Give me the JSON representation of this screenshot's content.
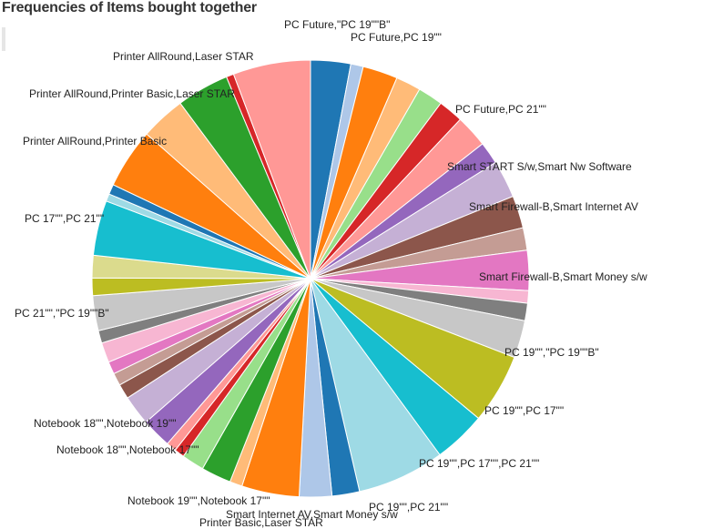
{
  "chart_data": {
    "type": "pie",
    "title": "Frequencies of Items bought together",
    "slices": [
      {
        "label": "PC Future,\"PC 19\"\"B\"",
        "value": 3.2,
        "color": "#1f77b4",
        "show_label": true
      },
      {
        "label": "PC Future,PC 19\"\"",
        "value": 1.0,
        "color": "#aec7e8",
        "show_label": true
      },
      {
        "label": "",
        "value": 2.8,
        "color": "#ff7f0e",
        "show_label": false
      },
      {
        "label": "",
        "value": 2.0,
        "color": "#ffbb78",
        "show_label": false
      },
      {
        "label": "",
        "value": 2.0,
        "color": "#98df8a",
        "show_label": false
      },
      {
        "label": "PC Future,PC 21\"\"",
        "value": 2.0,
        "color": "#d62728",
        "show_label": true
      },
      {
        "label": "",
        "value": 2.6,
        "color": "#ff9896",
        "show_label": false
      },
      {
        "label": "Smart START S/w,Smart Nw Software",
        "value": 1.8,
        "color": "#9467bd",
        "show_label": true
      },
      {
        "label": "",
        "value": 3.0,
        "color": "#c5b0d5",
        "show_label": false
      },
      {
        "label": "Smart Firewall-B,Smart Internet AV",
        "value": 2.6,
        "color": "#8c564b",
        "show_label": true
      },
      {
        "label": "",
        "value": 1.8,
        "color": "#c49c94",
        "show_label": false
      },
      {
        "label": "Smart Firewall-B,Smart Money s/w",
        "value": 3.2,
        "color": "#e377c2",
        "show_label": true
      },
      {
        "label": "",
        "value": 1.0,
        "color": "#f7b6d2",
        "show_label": false
      },
      {
        "label": "",
        "value": 1.4,
        "color": "#7f7f7f",
        "show_label": false
      },
      {
        "label": "PC 19\"\",\"PC 19\"\"B\"",
        "value": 3.0,
        "color": "#c7c7c7",
        "show_label": true
      },
      {
        "label": "PC 19\"\",PC 17\"\"",
        "value": 5.6,
        "color": "#bcbd22",
        "show_label": true
      },
      {
        "label": "PC 19\"\",PC 17\"\",PC 21\"\"",
        "value": 4.2,
        "color": "#17becf",
        "show_label": true
      },
      {
        "label": "",
        "value": 7.0,
        "color": "#9edae5",
        "show_label": false
      },
      {
        "label": "PC 19\"\",PC 21\"\"",
        "value": 2.2,
        "color": "#1f77b4",
        "show_label": true
      },
      {
        "label": "Smart Internet AV,Smart Money s/w",
        "value": 2.6,
        "color": "#aec7e8",
        "show_label": true
      },
      {
        "label": "Printer Basic,Laser STAR",
        "value": 4.6,
        "color": "#ff7f0e",
        "show_label": true
      },
      {
        "label": "",
        "value": 1.0,
        "color": "#ffbb78",
        "show_label": false
      },
      {
        "label": "Notebook 19\"\",Notebook 17\"\"",
        "value": 2.4,
        "color": "#2ca02c",
        "show_label": true
      },
      {
        "label": "",
        "value": 1.8,
        "color": "#98df8a",
        "show_label": false
      },
      {
        "label": "",
        "value": 0.8,
        "color": "#d62728",
        "show_label": false
      },
      {
        "label": "Notebook 18\"\",Notebook 17\"\"",
        "value": 0.8,
        "color": "#ff9896",
        "show_label": true
      },
      {
        "label": "Notebook 18\"\",Notebook 19\"\"",
        "value": 2.4,
        "color": "#9467bd",
        "show_label": true
      },
      {
        "label": "",
        "value": 2.4,
        "color": "#c5b0d5",
        "show_label": false
      },
      {
        "label": "",
        "value": 1.2,
        "color": "#8c564b",
        "show_label": false
      },
      {
        "label": "",
        "value": 1.0,
        "color": "#c49c94",
        "show_label": false
      },
      {
        "label": "",
        "value": 1.0,
        "color": "#e377c2",
        "show_label": false
      },
      {
        "label": "",
        "value": 1.6,
        "color": "#f7b6d2",
        "show_label": false
      },
      {
        "label": "",
        "value": 1.0,
        "color": "#7f7f7f",
        "show_label": false
      },
      {
        "label": "PC 21\"\",\"PC 19\"\"B\"",
        "value": 2.8,
        "color": "#c7c7c7",
        "show_label": true
      },
      {
        "label": "",
        "value": 1.4,
        "color": "#bcbd22",
        "show_label": false
      },
      {
        "label": "",
        "value": 1.8,
        "color": "#dbdb8d",
        "show_label": false
      },
      {
        "label": "PC 17\"\",PC 21\"\"",
        "value": 4.4,
        "color": "#17becf",
        "show_label": true
      },
      {
        "label": "",
        "value": 0.6,
        "color": "#9edae5",
        "show_label": false
      },
      {
        "label": "",
        "value": 0.8,
        "color": "#1f77b4",
        "show_label": false
      },
      {
        "label": "Printer AllRound,Printer Basic",
        "value": 4.8,
        "color": "#ff7f0e",
        "show_label": true
      },
      {
        "label": "Printer AllRound,Printer Basic,Laser STAR",
        "value": 3.6,
        "color": "#ffbb78",
        "show_label": true
      },
      {
        "label": "",
        "value": 4.2,
        "color": "#2ca02c",
        "show_label": false
      },
      {
        "label": "Printer AllRound,Laser STAR",
        "value": 0.6,
        "color": "#d62728",
        "show_label": true
      },
      {
        "label": "",
        "value": 6.2,
        "color": "#ff9896",
        "show_label": false
      }
    ],
    "legend": "none",
    "grid": false
  }
}
